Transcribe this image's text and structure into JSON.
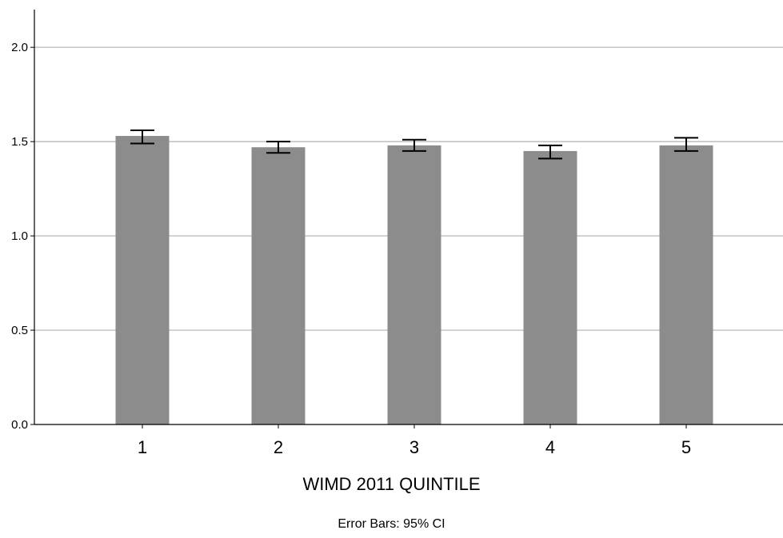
{
  "chart_data": {
    "type": "bar",
    "title": "",
    "xlabel": "WIMD 2011 QUINTILE",
    "ylabel": "",
    "categories": [
      "1",
      "2",
      "3",
      "4",
      "5"
    ],
    "series": [
      {
        "values": [
          1.53,
          1.47,
          1.48,
          1.45,
          1.48
        ],
        "ci_lower": [
          1.49,
          1.44,
          1.45,
          1.41,
          1.45
        ],
        "ci_upper": [
          1.56,
          1.5,
          1.51,
          1.48,
          1.52
        ]
      }
    ],
    "ylim": [
      0,
      2.2
    ],
    "yticks": [
      "0.0",
      "0.5",
      "1.0",
      "1.5",
      "2.0"
    ],
    "grid": "horizontal",
    "bar_color": "#8c8c8c",
    "grid_color": "#bdbdbd",
    "error_bar_color": "#000000",
    "footnote": "Error Bars: 95% CI"
  }
}
